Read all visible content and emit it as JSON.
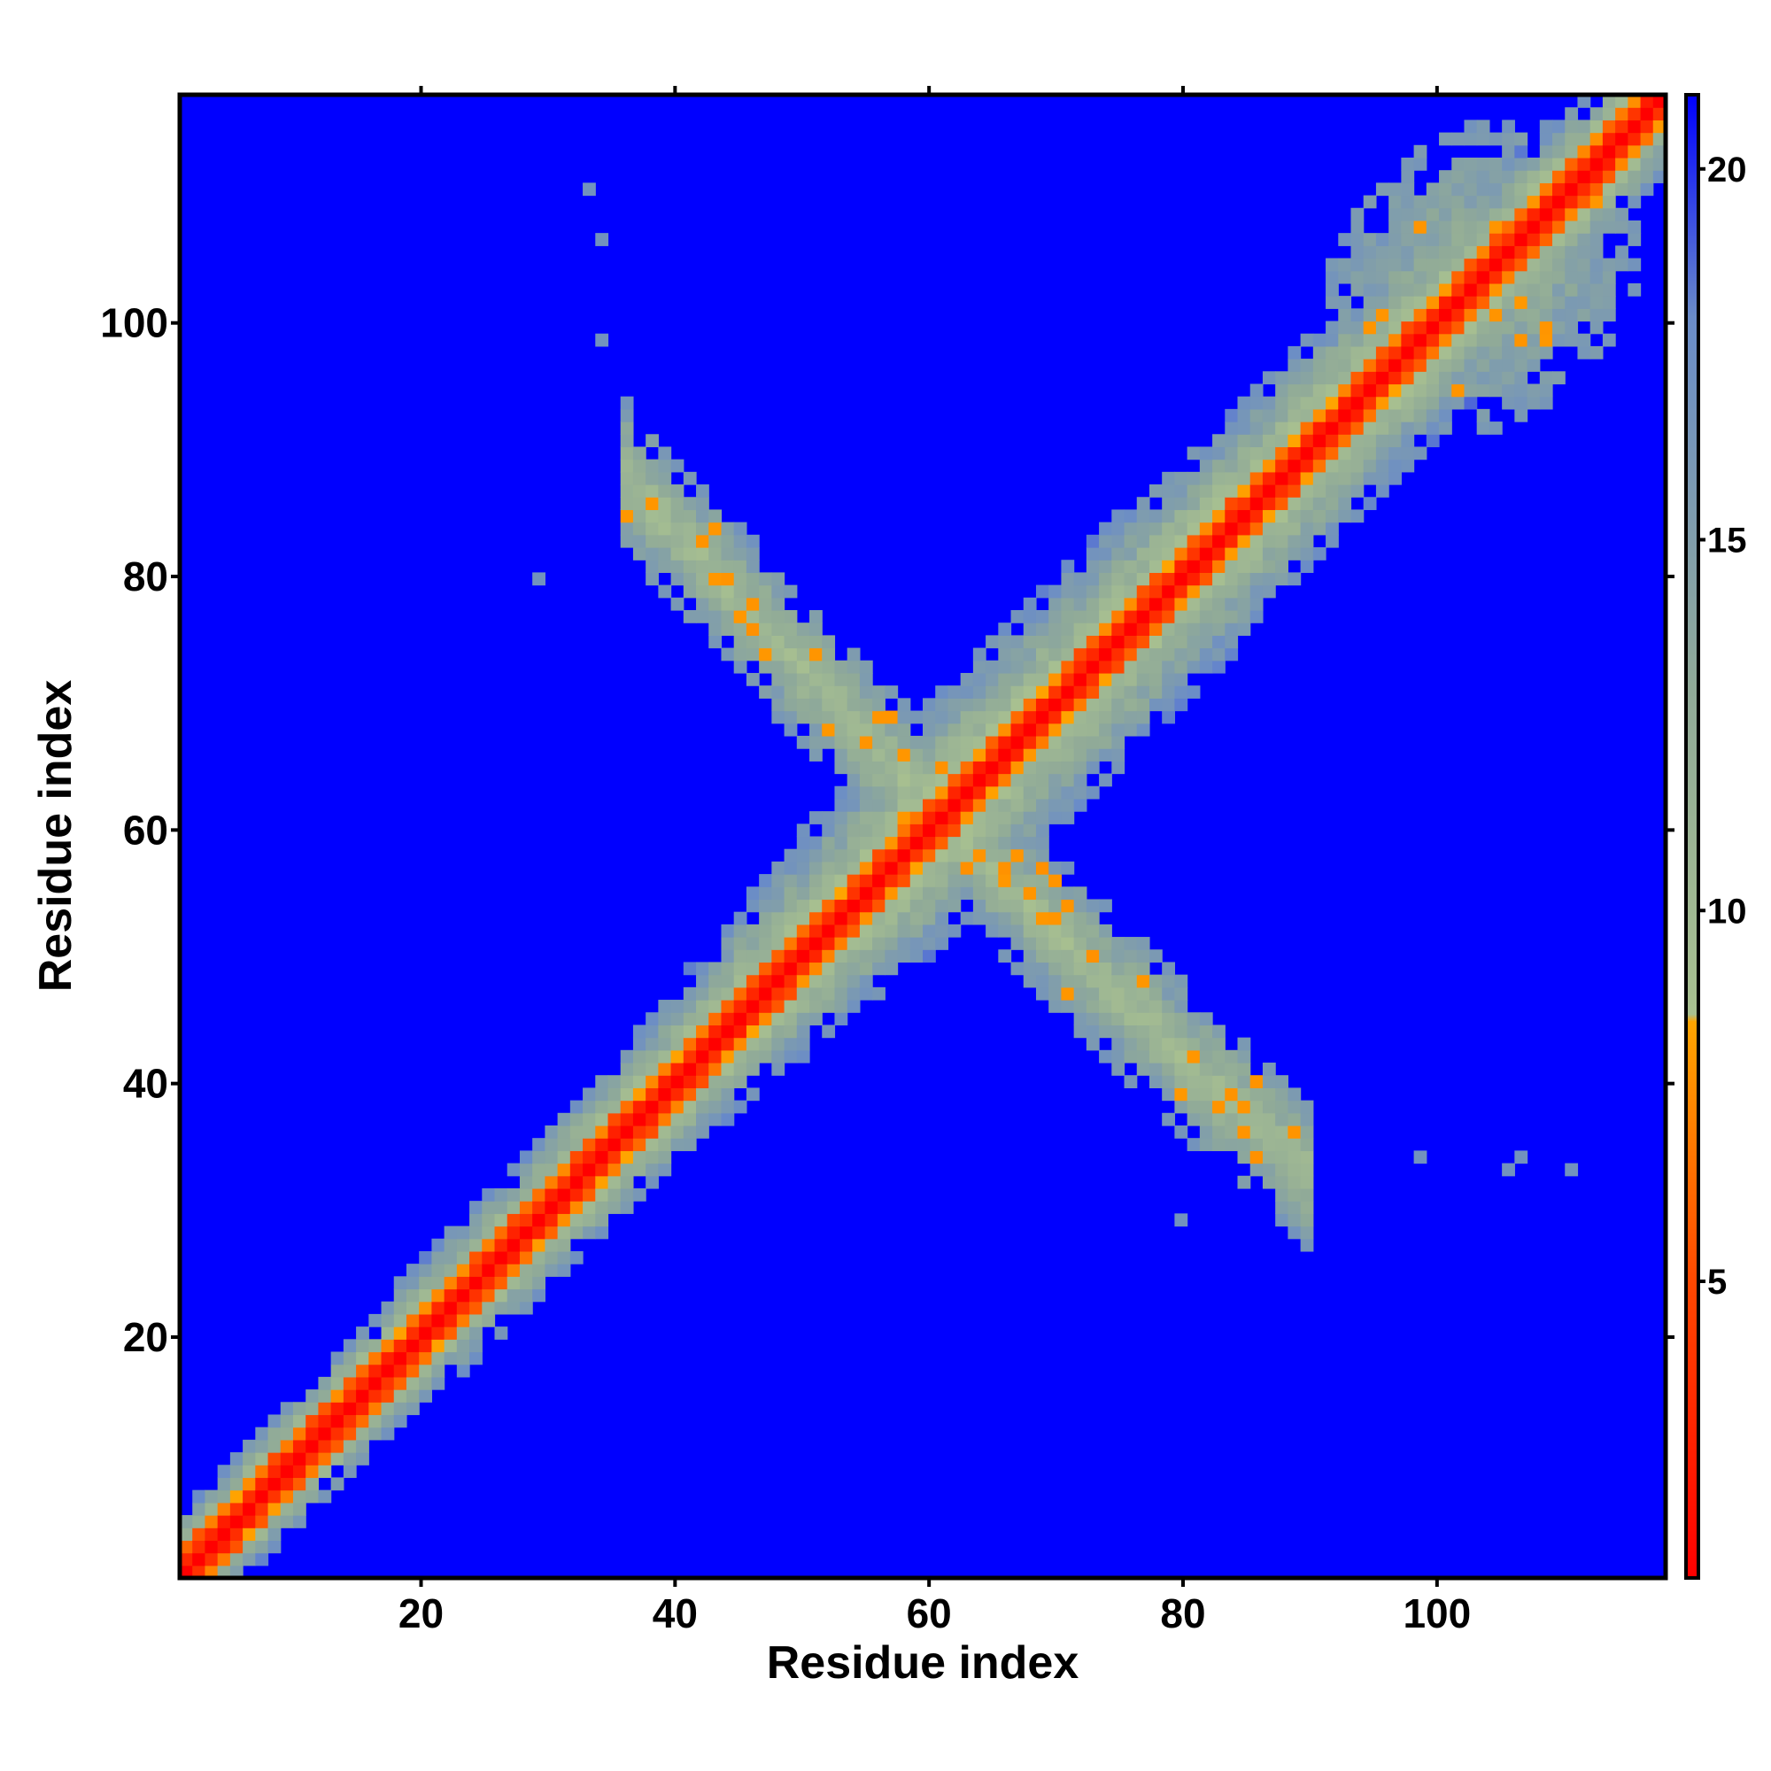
{
  "chart_data": {
    "type": "heatmap",
    "title": "",
    "xlabel": "Residue index",
    "ylabel": "Residue index",
    "xlim": [
      1,
      118
    ],
    "ylim": [
      1,
      118
    ],
    "x_ticks": [
      20,
      40,
      60,
      80,
      100
    ],
    "y_ticks": [
      20,
      40,
      60,
      80,
      100
    ],
    "colorbar": {
      "range": [
        1,
        21
      ],
      "ticks": [
        5,
        10,
        15,
        20
      ],
      "stops": [
        {
          "value": 1,
          "color": "#ff0000"
        },
        {
          "value": 5,
          "color": "#ff4800"
        },
        {
          "value": 8.5,
          "color": "#ffa500"
        },
        {
          "value": 8.6,
          "color": "#a8c090"
        },
        {
          "value": 13,
          "color": "#90aa98"
        },
        {
          "value": 18,
          "color": "#6a8cc8"
        },
        {
          "value": 21,
          "color": "#0000ff"
        }
      ]
    },
    "background_value": 21,
    "structure": {
      "diagonal_band": [
        {
          "x": 1,
          "y": 1,
          "half_width": 5
        },
        {
          "x": 20,
          "y": 20,
          "half_width": 6
        },
        {
          "x": 40,
          "y": 40,
          "half_width": 7
        },
        {
          "x": 60,
          "y": 60,
          "half_width": 11
        },
        {
          "x": 80,
          "y": 80,
          "half_width": 10
        },
        {
          "x": 100,
          "y": 100,
          "half_width": 9
        },
        {
          "x": 118,
          "y": 118,
          "half_width": 6
        }
      ],
      "anti_diagonal_arm": [
        {
          "x": 36,
          "y": 88
        },
        {
          "x": 48,
          "y": 75
        },
        {
          "x": 60,
          "y": 62
        },
        {
          "x": 72,
          "y": 50
        },
        {
          "x": 82,
          "y": 40
        },
        {
          "x": 90,
          "y": 33
        }
      ],
      "cluster_top_right": {
        "x_range": [
          88,
          118
        ],
        "y_range": [
          88,
          118
        ]
      },
      "isolated_points": [
        {
          "x": 33,
          "y": 111,
          "value": 17
        },
        {
          "x": 34,
          "y": 107,
          "value": 17
        },
        {
          "x": 34,
          "y": 99,
          "value": 17
        },
        {
          "x": 29,
          "y": 80,
          "value": 17
        },
        {
          "x": 80,
          "y": 29,
          "value": 17
        },
        {
          "x": 99,
          "y": 34,
          "value": 17
        },
        {
          "x": 106,
          "y": 33,
          "value": 17
        },
        {
          "x": 107,
          "y": 34,
          "value": 17
        },
        {
          "x": 111,
          "y": 33,
          "value": 17
        }
      ]
    }
  }
}
